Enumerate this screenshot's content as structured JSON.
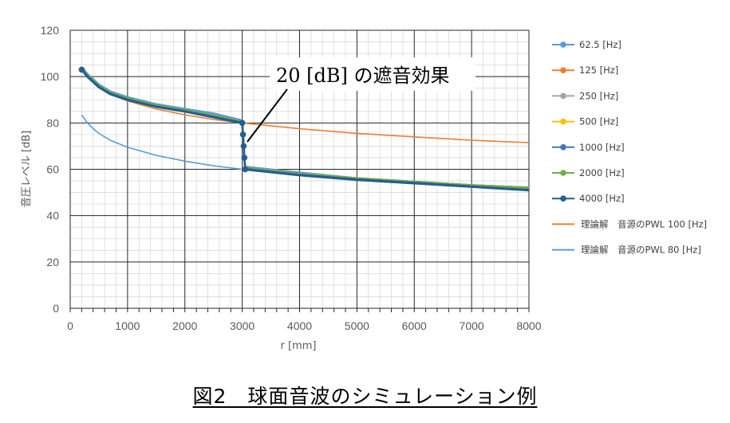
{
  "chart_data": {
    "type": "line",
    "title": "",
    "xlabel": "r [mm]",
    "ylabel": "音圧レベル [dB]",
    "xlim": [
      0,
      8000
    ],
    "ylim": [
      0,
      120
    ],
    "x_ticks": [
      0,
      1000,
      2000,
      3000,
      4000,
      5000,
      6000,
      7000,
      8000
    ],
    "y_ticks": [
      0,
      20,
      40,
      60,
      80,
      100,
      120
    ],
    "grid": true,
    "legend_position": "right",
    "annotation": "20 [dB] の遮音効果",
    "series": [
      {
        "name": "62.5 [Hz]",
        "color": "#5B9BD5",
        "marker": "circle",
        "segment1": [
          [
            200,
            104
          ],
          [
            300,
            101
          ],
          [
            500,
            96.5
          ],
          [
            700,
            93.5
          ],
          [
            1000,
            91
          ],
          [
            1500,
            88
          ],
          [
            2000,
            86
          ],
          [
            2500,
            84
          ],
          [
            3000,
            81
          ]
        ],
        "jump": [
          [
            3000,
            81
          ],
          [
            3050,
            61
          ]
        ],
        "segment2": [
          [
            3050,
            61
          ],
          [
            4000,
            58.5
          ],
          [
            5000,
            56
          ],
          [
            6000,
            54.5
          ],
          [
            7000,
            53
          ],
          [
            8000,
            51.5
          ]
        ]
      },
      {
        "name": "125 [Hz]",
        "color": "#ED7D31",
        "marker": "circle",
        "segment1": [
          [
            200,
            103.5
          ],
          [
            300,
            100.5
          ],
          [
            500,
            96
          ],
          [
            700,
            93
          ],
          [
            1000,
            90.5
          ],
          [
            1500,
            87.5
          ],
          [
            2000,
            85.5
          ],
          [
            2500,
            83
          ],
          [
            3000,
            80.5
          ]
        ],
        "jump": [
          [
            3000,
            80.5
          ],
          [
            3050,
            60.5
          ]
        ],
        "segment2": [
          [
            3050,
            60.5
          ],
          [
            4000,
            58
          ],
          [
            5000,
            56
          ],
          [
            6000,
            54.5
          ],
          [
            7000,
            53
          ],
          [
            8000,
            52
          ]
        ]
      },
      {
        "name": "250 [Hz]",
        "color": "#A5A5A5",
        "marker": "circle",
        "segment1": [
          [
            200,
            103.5
          ],
          [
            300,
            100.5
          ],
          [
            500,
            96
          ],
          [
            700,
            93
          ],
          [
            1000,
            90.5
          ],
          [
            1500,
            87.5
          ],
          [
            2000,
            85.5
          ],
          [
            2500,
            83
          ],
          [
            3000,
            80.5
          ]
        ],
        "jump": [
          [
            3000,
            80.5
          ],
          [
            3050,
            60.5
          ]
        ],
        "segment2": [
          [
            3050,
            60.5
          ],
          [
            4000,
            58
          ],
          [
            5000,
            56
          ],
          [
            6000,
            54.5
          ],
          [
            7000,
            53
          ],
          [
            8000,
            52
          ]
        ]
      },
      {
        "name": "500 [Hz]",
        "color": "#FFC000",
        "marker": "circle",
        "segment1": [
          [
            200,
            103.5
          ],
          [
            300,
            100.5
          ],
          [
            500,
            96
          ],
          [
            700,
            93
          ],
          [
            1000,
            90.5
          ],
          [
            1500,
            87.5
          ],
          [
            2000,
            85.5
          ],
          [
            2500,
            83
          ],
          [
            3000,
            80.5
          ]
        ],
        "jump": [
          [
            3000,
            80.5
          ],
          [
            3050,
            60.5
          ]
        ],
        "segment2": [
          [
            3050,
            60.5
          ],
          [
            4000,
            58
          ],
          [
            5000,
            56
          ],
          [
            6000,
            54.5
          ],
          [
            7000,
            53
          ],
          [
            8000,
            52
          ]
        ]
      },
      {
        "name": "1000 [Hz]",
        "color": "#4472C4",
        "marker": "circle",
        "segment1": [
          [
            200,
            103.5
          ],
          [
            300,
            100.5
          ],
          [
            500,
            96
          ],
          [
            700,
            93
          ],
          [
            1000,
            90.5
          ],
          [
            1500,
            87.5
          ],
          [
            2000,
            85.5
          ],
          [
            2500,
            83
          ],
          [
            3000,
            80.5
          ]
        ],
        "jump": [
          [
            3000,
            80.5
          ],
          [
            3050,
            60.5
          ]
        ],
        "segment2": [
          [
            3050,
            60.5
          ],
          [
            4000,
            58
          ],
          [
            5000,
            56
          ],
          [
            6000,
            54.5
          ],
          [
            7000,
            53
          ],
          [
            8000,
            52
          ]
        ]
      },
      {
        "name": "2000 [Hz]",
        "color": "#70AD47",
        "marker": "circle",
        "segment1": [
          [
            200,
            103.5
          ],
          [
            300,
            100.5
          ],
          [
            500,
            96
          ],
          [
            700,
            93
          ],
          [
            1000,
            90.5
          ],
          [
            1500,
            87.5
          ],
          [
            2000,
            85.5
          ],
          [
            2500,
            83
          ],
          [
            3000,
            80.5
          ]
        ],
        "jump": [
          [
            3000,
            80.5
          ],
          [
            3050,
            60.5
          ]
        ],
        "segment2": [
          [
            3050,
            60.5
          ],
          [
            4000,
            58
          ],
          [
            5000,
            56
          ],
          [
            6000,
            54.5
          ],
          [
            7000,
            53
          ],
          [
            8000,
            52
          ]
        ]
      },
      {
        "name": "4000 [Hz]",
        "color": "#255E91",
        "marker": "circle",
        "segment1": [
          [
            200,
            103
          ],
          [
            300,
            100
          ],
          [
            500,
            95.5
          ],
          [
            700,
            92.5
          ],
          [
            1000,
            90
          ],
          [
            1500,
            87
          ],
          [
            2000,
            85
          ],
          [
            2500,
            82.5
          ],
          [
            3000,
            80
          ]
        ],
        "jump": [
          [
            3000,
            80
          ],
          [
            3050,
            60
          ]
        ],
        "segment2": [
          [
            3050,
            60
          ],
          [
            4000,
            57.5
          ],
          [
            5000,
            55.5
          ],
          [
            6000,
            54
          ],
          [
            7000,
            52.5
          ],
          [
            8000,
            51
          ]
        ]
      },
      {
        "name": "理論解　音源のPWL 100 [Hz]",
        "color": "#ED7D31",
        "marker": "none",
        "points": [
          [
            200,
            103.5
          ],
          [
            300,
            100
          ],
          [
            400,
            97.5
          ],
          [
            500,
            95.5
          ],
          [
            700,
            92.5
          ],
          [
            1000,
            89.5
          ],
          [
            1500,
            86
          ],
          [
            2000,
            83.5
          ],
          [
            2500,
            81.5
          ],
          [
            3000,
            80
          ],
          [
            4000,
            77.5
          ],
          [
            5000,
            75.5
          ],
          [
            6000,
            74
          ],
          [
            7000,
            72.5
          ],
          [
            8000,
            71.5
          ]
        ]
      },
      {
        "name": "理論解　音源のPWL 80 [Hz]",
        "color": "#5B9BD5",
        "marker": "none",
        "points": [
          [
            200,
            83.5
          ],
          [
            300,
            80
          ],
          [
            400,
            77.5
          ],
          [
            500,
            75.5
          ],
          [
            700,
            72.5
          ],
          [
            1000,
            69.5
          ],
          [
            1500,
            66
          ],
          [
            2000,
            63.5
          ],
          [
            2500,
            61.5
          ],
          [
            3000,
            60
          ],
          [
            4000,
            57.5
          ],
          [
            5000,
            55.5
          ],
          [
            6000,
            54
          ],
          [
            7000,
            52.5
          ],
          [
            8000,
            51.5
          ]
        ]
      }
    ]
  },
  "caption": "図2　球面音波のシミュレーション例"
}
